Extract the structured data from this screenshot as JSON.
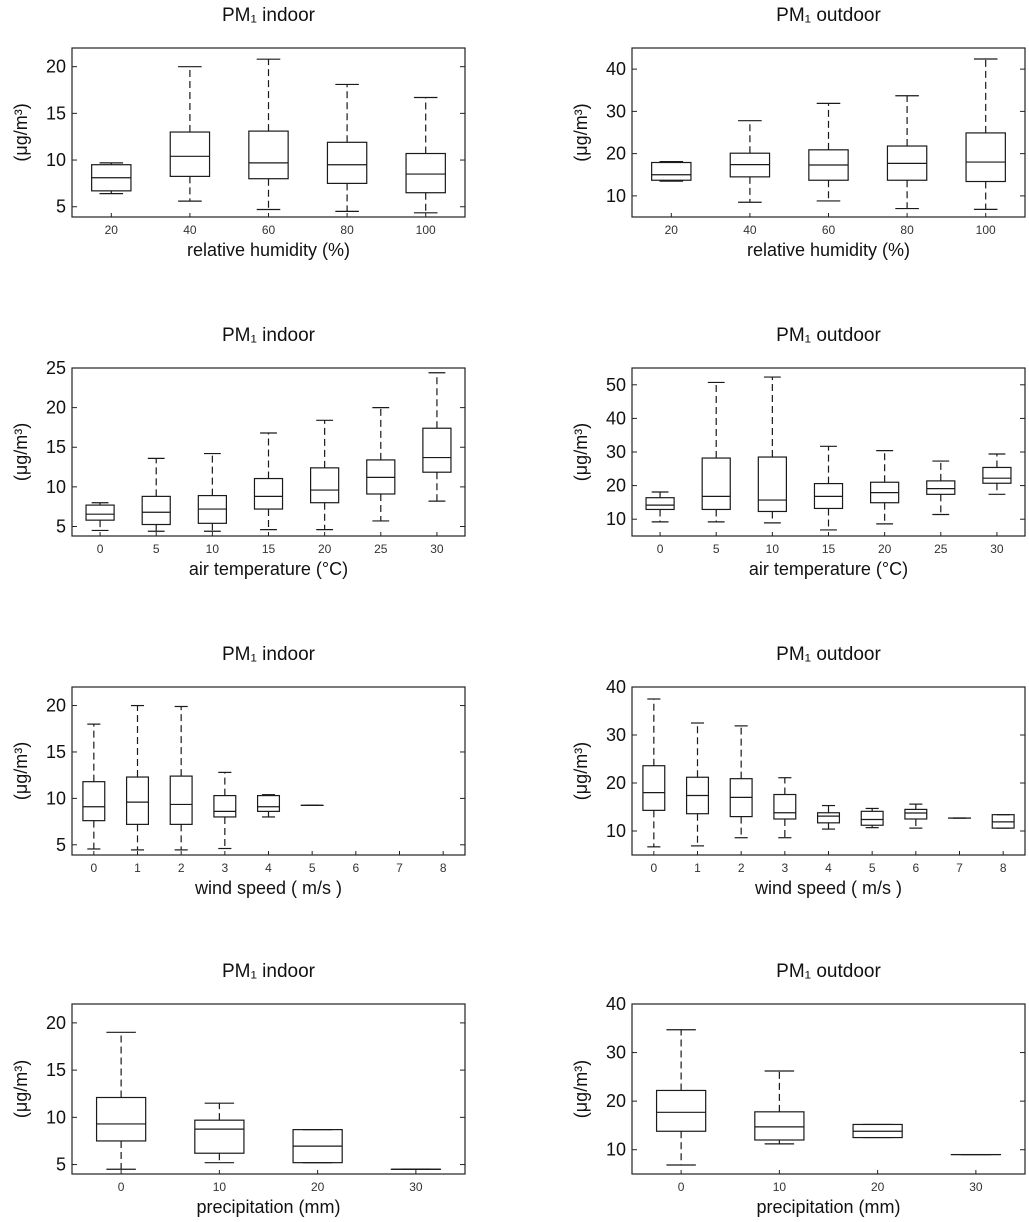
{
  "chart_data": [
    {
      "type": "box",
      "title": "PM₁ indoor",
      "xlabel": "relative humidity (%)",
      "ylabel": "(μg/m³)",
      "categories": [
        "20",
        "40",
        "60",
        "80",
        "100"
      ],
      "ylim": [
        3.9,
        22
      ],
      "yticks": [
        5,
        10,
        15,
        20
      ],
      "boxes": [
        {
          "whisker_low": 6.4,
          "q1": 6.7,
          "median": 8.1,
          "q3": 9.5,
          "whisker_high": 9.7
        },
        {
          "whisker_low": 5.6,
          "q1": 8.25,
          "median": 10.4,
          "q3": 13.0,
          "whisker_high": 20.0
        },
        {
          "whisker_low": 4.7,
          "q1": 8.0,
          "median": 9.7,
          "q3": 13.1,
          "whisker_high": 20.8
        },
        {
          "whisker_low": 4.5,
          "q1": 7.5,
          "median": 9.5,
          "q3": 11.9,
          "whisker_high": 18.1
        },
        {
          "whisker_low": 4.35,
          "q1": 6.5,
          "median": 8.5,
          "q3": 10.7,
          "whisker_high": 16.7
        }
      ]
    },
    {
      "type": "box",
      "title": "PM₁ outdoor",
      "xlabel": "relative humidity (%)",
      "ylabel": "(μg/m³)",
      "categories": [
        "20",
        "40",
        "60",
        "80",
        "100"
      ],
      "ylim": [
        5,
        45
      ],
      "yticks": [
        10,
        20,
        30,
        40
      ],
      "boxes": [
        {
          "whisker_low": 13.5,
          "q1": 13.7,
          "median": 15.0,
          "q3": 17.9,
          "whisker_high": 18.1
        },
        {
          "whisker_low": 8.5,
          "q1": 14.5,
          "median": 17.4,
          "q3": 20.1,
          "whisker_high": 27.8
        },
        {
          "whisker_low": 8.8,
          "q1": 13.7,
          "median": 17.3,
          "q3": 20.9,
          "whisker_high": 31.9
        },
        {
          "whisker_low": 7.0,
          "q1": 13.7,
          "median": 17.7,
          "q3": 21.8,
          "whisker_high": 33.7
        },
        {
          "whisker_low": 6.8,
          "q1": 13.4,
          "median": 18.0,
          "q3": 24.9,
          "whisker_high": 42.4
        }
      ]
    },
    {
      "type": "box",
      "title": "PM₁ indoor",
      "xlabel": "air temperature (°C)",
      "ylabel": "(μg/m³)",
      "categories": [
        "0",
        "5",
        "10",
        "15",
        "20",
        "25",
        "30"
      ],
      "ylim": [
        3.8,
        25
      ],
      "yticks": [
        5,
        10,
        15,
        20,
        25
      ],
      "boxes": [
        {
          "whisker_low": 4.5,
          "q1": 5.8,
          "median": 6.55,
          "q3": 7.7,
          "whisker_high": 8.0
        },
        {
          "whisker_low": 4.4,
          "q1": 5.25,
          "median": 6.8,
          "q3": 8.8,
          "whisker_high": 13.6
        },
        {
          "whisker_low": 4.4,
          "q1": 5.4,
          "median": 7.2,
          "q3": 8.9,
          "whisker_high": 14.2
        },
        {
          "whisker_low": 4.6,
          "q1": 7.2,
          "median": 8.8,
          "q3": 11.05,
          "whisker_high": 16.8
        },
        {
          "whisker_low": 4.6,
          "q1": 8.0,
          "median": 9.6,
          "q3": 12.4,
          "whisker_high": 18.4
        },
        {
          "whisker_low": 5.7,
          "q1": 9.1,
          "median": 11.2,
          "q3": 13.4,
          "whisker_high": 20.0
        },
        {
          "whisker_low": 8.2,
          "q1": 11.85,
          "median": 13.7,
          "q3": 17.4,
          "whisker_high": 24.4
        }
      ]
    },
    {
      "type": "box",
      "title": "PM₁ outdoor",
      "xlabel": "air temperature (°C)",
      "ylabel": "(μg/m³)",
      "categories": [
        "0",
        "5",
        "10",
        "15",
        "20",
        "25",
        "30"
      ],
      "ylim": [
        5,
        55
      ],
      "yticks": [
        10,
        20,
        30,
        40,
        50
      ],
      "boxes": [
        {
          "whisker_low": 9.2,
          "q1": 12.9,
          "median": 14.2,
          "q3": 16.4,
          "whisker_high": 18.1
        },
        {
          "whisker_low": 9.2,
          "q1": 12.9,
          "median": 16.8,
          "q3": 28.2,
          "whisker_high": 50.7
        },
        {
          "whisker_low": 8.9,
          "q1": 12.3,
          "median": 15.7,
          "q3": 28.5,
          "whisker_high": 52.3
        },
        {
          "whisker_low": 6.8,
          "q1": 13.2,
          "median": 16.8,
          "q3": 20.6,
          "whisker_high": 31.7
        },
        {
          "whisker_low": 8.6,
          "q1": 14.9,
          "median": 17.9,
          "q3": 21.0,
          "whisker_high": 30.4
        },
        {
          "whisker_low": 11.4,
          "q1": 17.4,
          "median": 19.1,
          "q3": 21.4,
          "whisker_high": 27.3
        },
        {
          "whisker_low": 17.4,
          "q1": 20.7,
          "median": 22.2,
          "q3": 25.4,
          "whisker_high": 29.4
        }
      ]
    },
    {
      "type": "box",
      "title": "PM₁ indoor",
      "xlabel": "wind speed ( m/s )",
      "ylabel": "(μg/m³)",
      "categories": [
        "0",
        "1",
        "2",
        "3",
        "4",
        "5",
        "6",
        "7",
        "8"
      ],
      "ylim": [
        3.9,
        22
      ],
      "yticks": [
        5,
        10,
        15,
        20
      ],
      "boxes": [
        {
          "whisker_low": 4.55,
          "q1": 7.6,
          "median": 9.1,
          "q3": 11.8,
          "whisker_high": 18.0
        },
        {
          "whisker_low": 4.45,
          "q1": 7.2,
          "median": 9.6,
          "q3": 12.3,
          "whisker_high": 20.0
        },
        {
          "whisker_low": 4.45,
          "q1": 7.2,
          "median": 9.35,
          "q3": 12.4,
          "whisker_high": 19.9
        },
        {
          "whisker_low": 4.6,
          "q1": 8.0,
          "median": 8.6,
          "q3": 10.3,
          "whisker_high": 12.8
        },
        {
          "whisker_low": 8.0,
          "q1": 8.6,
          "median": 9.1,
          "q3": 10.3,
          "whisker_high": 10.4
        },
        {
          "whisker_low": 9.25,
          "q1": 9.25,
          "median": 9.25,
          "q3": 9.25,
          "whisker_high": 9.25
        },
        null,
        null,
        null
      ]
    },
    {
      "type": "box",
      "title": "PM₁ outdoor",
      "xlabel": "wind speed ( m/s )",
      "ylabel": "(μg/m³)",
      "categories": [
        "0",
        "1",
        "2",
        "3",
        "4",
        "5",
        "6",
        "7",
        "8"
      ],
      "ylim": [
        5,
        40
      ],
      "yticks": [
        10,
        20,
        30,
        40
      ],
      "boxes": [
        {
          "whisker_low": 6.7,
          "q1": 14.3,
          "median": 18.0,
          "q3": 23.6,
          "whisker_high": 37.5
        },
        {
          "whisker_low": 6.9,
          "q1": 13.6,
          "median": 17.4,
          "q3": 21.2,
          "whisker_high": 32.5
        },
        {
          "whisker_low": 8.6,
          "q1": 13.0,
          "median": 17.0,
          "q3": 20.9,
          "whisker_high": 31.9
        },
        {
          "whisker_low": 8.6,
          "q1": 12.5,
          "median": 13.8,
          "q3": 17.6,
          "whisker_high": 21.1
        },
        {
          "whisker_low": 10.4,
          "q1": 11.7,
          "median": 13.1,
          "q3": 13.8,
          "whisker_high": 15.3
        },
        {
          "whisker_low": 10.7,
          "q1": 11.2,
          "median": 12.4,
          "q3": 14.1,
          "whisker_high": 14.7
        },
        {
          "whisker_low": 10.6,
          "q1": 12.5,
          "median": 13.75,
          "q3": 14.5,
          "whisker_high": 15.6
        },
        {
          "whisker_low": 12.7,
          "q1": 12.7,
          "median": 12.7,
          "q3": 12.7,
          "whisker_high": 12.7
        },
        {
          "whisker_low": 10.6,
          "q1": 10.6,
          "median": 11.9,
          "q3": 13.4,
          "whisker_high": 13.4
        }
      ]
    },
    {
      "type": "box",
      "title": "PM₁ indoor",
      "xlabel": "precipitation (mm)",
      "ylabel": "(μg/m³)",
      "categories": [
        "0",
        "10",
        "20",
        "30"
      ],
      "ylim": [
        4,
        22
      ],
      "yticks": [
        5,
        10,
        15,
        20
      ],
      "boxes": [
        {
          "whisker_low": 4.5,
          "q1": 7.5,
          "median": 9.3,
          "q3": 12.1,
          "whisker_high": 19.0
        },
        {
          "whisker_low": 5.2,
          "q1": 6.2,
          "median": 8.75,
          "q3": 9.7,
          "whisker_high": 11.5
        },
        {
          "whisker_low": 5.2,
          "q1": 5.2,
          "median": 6.95,
          "q3": 8.7,
          "whisker_high": 8.7
        },
        {
          "whisker_low": 4.5,
          "q1": 4.5,
          "median": 4.5,
          "q3": 4.5,
          "whisker_high": 4.5
        }
      ]
    },
    {
      "type": "box",
      "title": "PM₁ outdoor",
      "xlabel": "precipitation (mm)",
      "ylabel": "(μg/m³)",
      "categories": [
        "0",
        "10",
        "20",
        "30"
      ],
      "ylim": [
        5,
        40
      ],
      "yticks": [
        10,
        20,
        30,
        40
      ],
      "boxes": [
        {
          "whisker_low": 6.85,
          "q1": 13.8,
          "median": 17.7,
          "q3": 22.2,
          "whisker_high": 34.7
        },
        {
          "whisker_low": 11.2,
          "q1": 12.0,
          "median": 14.7,
          "q3": 17.8,
          "whisker_high": 26.2
        },
        {
          "whisker_low": 12.5,
          "q1": 12.5,
          "median": 13.8,
          "q3": 15.2,
          "whisker_high": 15.2
        },
        {
          "whisker_low": 9.0,
          "q1": 9.0,
          "median": 9.0,
          "q3": 9.0,
          "whisker_high": 9.0
        }
      ]
    }
  ]
}
